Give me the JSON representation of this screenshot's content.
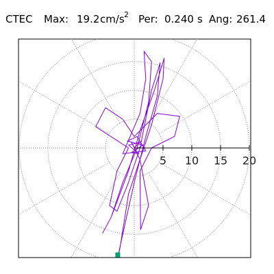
{
  "chart_data": {
    "type": "orbit",
    "station": "CTEC",
    "max_label": "Max:",
    "max": 19.2,
    "max_unit": "cm/s",
    "max_unit_exp": "2",
    "period_label": "Per:",
    "period": {
      "value": 0.24,
      "label": "0.240"
    },
    "period_unit": "s",
    "angle_label": "Ang:",
    "angle": 261.4,
    "rlim": [
      0,
      20
    ],
    "rticks": [
      5,
      10,
      15,
      20
    ],
    "color": "#8000e0",
    "marker_color": "#00a070",
    "x": [
      0,
      1,
      -1,
      0.8,
      -0.5,
      1.5,
      -1.2,
      0.5,
      2,
      -2,
      1,
      2,
      1.7,
      3,
      2.5,
      0.5,
      -2,
      -4,
      -5.5,
      -4,
      -1,
      1,
      3.5,
      5.2,
      5,
      3,
      1,
      -1,
      -2.5,
      -2.87,
      -2,
      0,
      2,
      4,
      4.5,
      3,
      1,
      -1,
      -3,
      -4.3,
      -3,
      -1,
      -6.7,
      -5,
      -2,
      0,
      4,
      7.9,
      7,
      3,
      1,
      1.1,
      2.5,
      1,
      -0.5,
      0.3
    ],
    "y": [
      0,
      1,
      0.5,
      -1,
      -0.8,
      0.5,
      1.2,
      2,
      -0.5,
      -1,
      6,
      12,
      16.8,
      15,
      8,
      0,
      -6,
      -12,
      -14.8,
      -12,
      -4,
      3,
      10,
      15.6,
      12,
      4,
      -2,
      -8,
      -17.5,
      -18.98,
      -15,
      -6,
      2,
      9,
      14.8,
      10,
      0,
      -6,
      -11,
      -10,
      -4,
      0,
      3.7,
      7,
      5,
      2,
      6,
      5.5,
      2,
      0,
      -4,
      -14.2,
      -10,
      -2,
      1,
      -0.5
    ]
  }
}
